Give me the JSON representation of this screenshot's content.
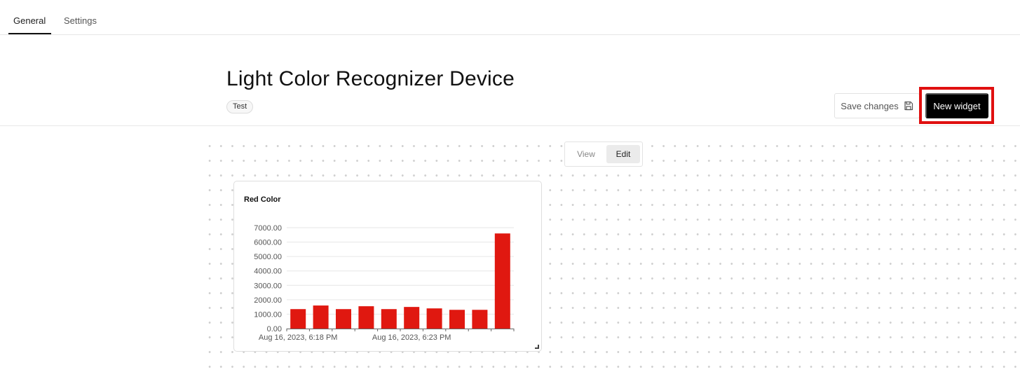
{
  "tabs": [
    {
      "label": "General",
      "active": true
    },
    {
      "label": "Settings",
      "active": false
    }
  ],
  "page": {
    "title": "Light Color Recognizer Device",
    "tag": "Test"
  },
  "actions": {
    "save_label": "Save changes",
    "save_icon": "save-icon",
    "new_widget_label": "New widget",
    "highlight_color": "#e01010"
  },
  "mode_toggle": {
    "view_label": "View",
    "edit_label": "Edit",
    "selected": "Edit"
  },
  "widget": {
    "title": "Red Color"
  },
  "chart_data": {
    "type": "bar",
    "title": "Red Color",
    "color": "#e01810",
    "ylim": [
      0,
      7000
    ],
    "y_ticks": [
      "0.00",
      "1000.00",
      "2000.00",
      "3000.00",
      "4000.00",
      "5000.00",
      "6000.00",
      "7000.00"
    ],
    "x_tick_labels": [
      "Aug 16, 2023, 6:18 PM",
      "Aug 16, 2023, 6:23 PM"
    ],
    "values": [
      1350,
      1600,
      1350,
      1550,
      1350,
      1500,
      1400,
      1300,
      1300,
      6600
    ],
    "grid": true,
    "legend": false
  }
}
